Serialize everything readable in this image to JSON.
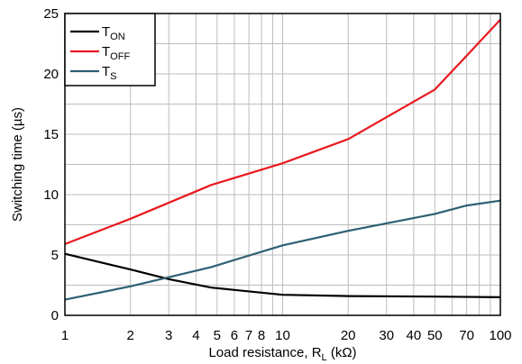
{
  "chart_data": {
    "type": "line",
    "xscale": "log",
    "xlim": [
      1,
      100
    ],
    "ylim": [
      0,
      25
    ],
    "grid": true,
    "legend_position": "top-left",
    "xlabel": "Load resistance, R",
    "xlabel_sub": "L",
    "xlabel_unit": " (kΩ)",
    "ylabel": "Switching time (µs)",
    "x_ticks": [
      {
        "value": 1,
        "label": "1"
      },
      {
        "value": 2,
        "label": "2"
      },
      {
        "value": 3,
        "label": "3"
      },
      {
        "value": 4,
        "label": "4"
      },
      {
        "value": 5,
        "label": "5"
      },
      {
        "value": 6,
        "label": "6"
      },
      {
        "value": 7,
        "label": "7"
      },
      {
        "value": 8,
        "label": "8"
      },
      {
        "value": 10,
        "label": "10"
      },
      {
        "value": 20,
        "label": "20"
      },
      {
        "value": 30,
        "label": "30"
      },
      {
        "value": 40,
        "label": "40"
      },
      {
        "value": 50,
        "label": "50"
      },
      {
        "value": 70,
        "label": "70"
      },
      {
        "value": 100,
        "label": "100"
      }
    ],
    "x_gridlines": [
      1,
      2,
      3,
      4,
      5,
      6,
      7,
      8,
      9,
      10,
      20,
      30,
      40,
      50,
      60,
      70,
      80,
      90,
      100
    ],
    "y_ticks": [
      0,
      5,
      10,
      15,
      20,
      25
    ],
    "y_minor_gridlines": [
      2.5,
      7.5,
      12.5,
      17.5,
      22.5
    ],
    "series": [
      {
        "name": "T",
        "name_sub": "ON",
        "color": "#000000",
        "points": [
          [
            1,
            5.1
          ],
          [
            2,
            3.8
          ],
          [
            3,
            3.0
          ],
          [
            4.7,
            2.3
          ],
          [
            10,
            1.7
          ],
          [
            20,
            1.6
          ],
          [
            50,
            1.55
          ],
          [
            100,
            1.5
          ]
        ]
      },
      {
        "name": "T",
        "name_sub": "OFF",
        "color": "#e8191f",
        "points": [
          [
            1,
            5.9
          ],
          [
            2,
            8.0
          ],
          [
            4.7,
            10.8
          ],
          [
            10,
            12.6
          ],
          [
            20,
            14.6
          ],
          [
            50,
            18.7
          ],
          [
            70,
            21.5
          ],
          [
            100,
            24.5
          ]
        ]
      },
      {
        "name": "T",
        "name_sub": "S",
        "color": "#2e5f73",
        "points": [
          [
            1,
            1.3
          ],
          [
            2,
            2.4
          ],
          [
            4.7,
            4.0
          ],
          [
            10,
            5.8
          ],
          [
            20,
            7.0
          ],
          [
            50,
            8.4
          ],
          [
            70,
            9.1
          ],
          [
            100,
            9.5
          ]
        ]
      }
    ]
  }
}
